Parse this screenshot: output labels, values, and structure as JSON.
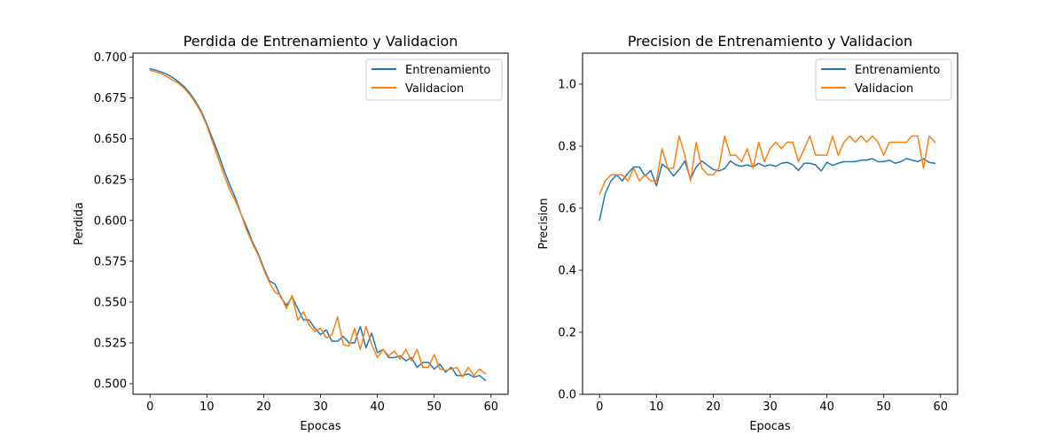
{
  "chart_data": [
    {
      "type": "line",
      "title": "Perdida de Entrenamiento y Validacion",
      "xlabel": "Epocas",
      "ylabel": "Perdida",
      "xlim": [
        -3,
        63
      ],
      "ylim": [
        0.4935,
        0.7025
      ],
      "xticks": [
        0,
        10,
        20,
        30,
        40,
        50,
        60
      ],
      "yticks": [
        0.5,
        0.525,
        0.55,
        0.575,
        0.6,
        0.625,
        0.65,
        0.675,
        0.7
      ],
      "ytick_labels": [
        "0.500",
        "0.525",
        "0.550",
        "0.575",
        "0.600",
        "0.625",
        "0.650",
        "0.675",
        "0.700"
      ],
      "legend_position": "top-right",
      "series": [
        {
          "name": "Entrenamiento",
          "color": "#1f77b4",
          "values": [
            0.693,
            0.692,
            0.691,
            0.6895,
            0.6875,
            0.685,
            0.682,
            0.678,
            0.673,
            0.667,
            0.659,
            0.65,
            0.641,
            0.631,
            0.622,
            0.614,
            0.604,
            0.596,
            0.587,
            0.58,
            0.571,
            0.563,
            0.561,
            0.553,
            0.548,
            0.553,
            0.546,
            0.539,
            0.539,
            0.534,
            0.53,
            0.533,
            0.526,
            0.526,
            0.529,
            0.525,
            0.525,
            0.535,
            0.522,
            0.531,
            0.519,
            0.521,
            0.516,
            0.516,
            0.517,
            0.514,
            0.516,
            0.51,
            0.513,
            0.513,
            0.509,
            0.512,
            0.507,
            0.51,
            0.505,
            0.505,
            0.506,
            0.504,
            0.505,
            0.502
          ]
        },
        {
          "name": "Validacion",
          "color": "#ff7f0e",
          "values": [
            0.692,
            0.691,
            0.69,
            0.688,
            0.686,
            0.684,
            0.681,
            0.677,
            0.672,
            0.666,
            0.658,
            0.648,
            0.638,
            0.628,
            0.619,
            0.612,
            0.604,
            0.594,
            0.586,
            0.579,
            0.57,
            0.562,
            0.556,
            0.554,
            0.546,
            0.554,
            0.539,
            0.544,
            0.536,
            0.532,
            0.534,
            0.528,
            0.53,
            0.541,
            0.524,
            0.523,
            0.534,
            0.521,
            0.535,
            0.524,
            0.516,
            0.521,
            0.517,
            0.52,
            0.515,
            0.521,
            0.514,
            0.521,
            0.51,
            0.51,
            0.518,
            0.509,
            0.508,
            0.509,
            0.51,
            0.504,
            0.51,
            0.505,
            0.509,
            0.506
          ]
        }
      ]
    },
    {
      "type": "line",
      "title": "Precision de Entrenamiento y Validacion",
      "xlabel": "Epocas",
      "ylabel": "Precision",
      "xlim": [
        -3,
        63
      ],
      "ylim": [
        0.0,
        1.1
      ],
      "xticks": [
        0,
        10,
        20,
        30,
        40,
        50,
        60
      ],
      "yticks": [
        0.0,
        0.2,
        0.4,
        0.6,
        0.8,
        1.0
      ],
      "ytick_labels": [
        "0.0",
        "0.2",
        "0.4",
        "0.6",
        "0.8",
        "1.0"
      ],
      "legend_position": "top-right",
      "series": [
        {
          "name": "Entrenamiento",
          "color": "#1f77b4",
          "values": [
            0.562,
            0.648,
            0.688,
            0.708,
            0.688,
            0.713,
            0.733,
            0.733,
            0.704,
            0.722,
            0.672,
            0.742,
            0.728,
            0.704,
            0.725,
            0.752,
            0.694,
            0.733,
            0.752,
            0.738,
            0.725,
            0.72,
            0.728,
            0.752,
            0.74,
            0.735,
            0.74,
            0.733,
            0.745,
            0.735,
            0.74,
            0.735,
            0.745,
            0.748,
            0.74,
            0.722,
            0.745,
            0.745,
            0.74,
            0.72,
            0.748,
            0.738,
            0.745,
            0.75,
            0.75,
            0.75,
            0.755,
            0.755,
            0.76,
            0.75,
            0.75,
            0.755,
            0.745,
            0.75,
            0.76,
            0.755,
            0.75,
            0.76,
            0.748,
            0.745
          ]
        },
        {
          "name": "Validacion",
          "color": "#ff7f0e",
          "values": [
            0.646,
            0.688,
            0.708,
            0.708,
            0.708,
            0.688,
            0.729,
            0.688,
            0.708,
            0.688,
            0.688,
            0.792,
            0.729,
            0.729,
            0.833,
            0.771,
            0.688,
            0.813,
            0.729,
            0.708,
            0.708,
            0.729,
            0.833,
            0.771,
            0.771,
            0.75,
            0.792,
            0.729,
            0.813,
            0.75,
            0.792,
            0.813,
            0.792,
            0.813,
            0.813,
            0.75,
            0.792,
            0.833,
            0.771,
            0.771,
            0.771,
            0.833,
            0.771,
            0.813,
            0.833,
            0.813,
            0.833,
            0.813,
            0.833,
            0.813,
            0.771,
            0.813,
            0.813,
            0.813,
            0.813,
            0.833,
            0.833,
            0.729,
            0.833,
            0.813
          ]
        }
      ]
    }
  ]
}
